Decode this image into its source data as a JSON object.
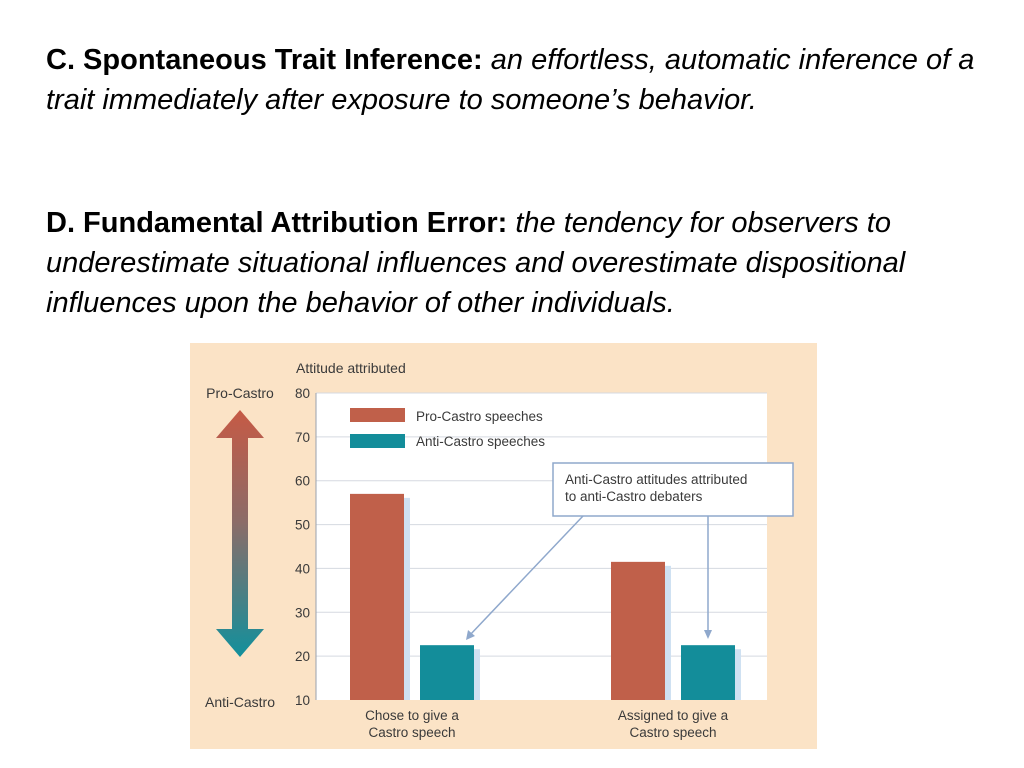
{
  "slide": {
    "c_term": "C. Spontaneous Trait Inference:",
    "c_definition": "an effortless, automatic inference of a trait immediately after exposure to someone’s behavior.",
    "d_term": "D. Fundamental Attribution Error:",
    "d_definition": "the tendency for observers to underestimate situational influences and overestimate dispositional influences upon the behavior of other individuals."
  },
  "chart_data": {
    "type": "bar",
    "ylabel": "Attitude attributed",
    "ylim": [
      10,
      80
    ],
    "yticks": [
      10,
      20,
      30,
      40,
      50,
      60,
      70,
      80
    ],
    "grid": true,
    "categories": [
      "Chose to give a Castro speech",
      "Assigned to give a Castro speech"
    ],
    "category_lines": [
      [
        "Chose to give a",
        "Castro speech"
      ],
      [
        "Assigned to give a",
        "Castro speech"
      ]
    ],
    "series": [
      {
        "name": "Pro-Castro speeches",
        "values": [
          57,
          41.5
        ],
        "color": "#c0604a"
      },
      {
        "name": "Anti-Castro speeches",
        "values": [
          22.5,
          22.5
        ],
        "color": "#138d9a"
      }
    ],
    "legend_position": "top-left",
    "scale_top_label": "Pro-Castro",
    "scale_bottom_label": "Anti-Castro",
    "annotation": {
      "lines": [
        "Anti-Castro attitudes attributed",
        "to anti-Castro debaters"
      ]
    }
  }
}
